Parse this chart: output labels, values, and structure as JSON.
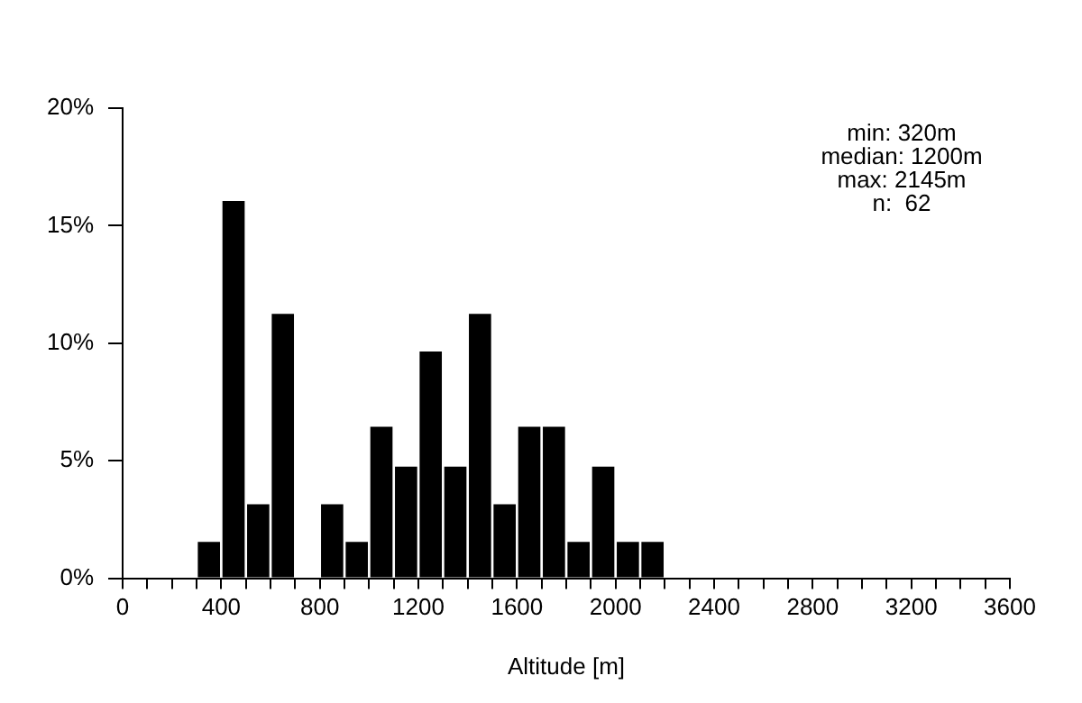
{
  "chart_data": {
    "type": "histogram",
    "xlabel": "Altitude [m]",
    "bins": [
      300,
      400,
      500,
      600,
      700,
      800,
      900,
      1000,
      1100,
      1200,
      1300,
      1400,
      1500,
      1600,
      1700,
      1800,
      1900,
      2000,
      2100,
      2200
    ],
    "values": [
      1.6,
      16.1,
      3.2,
      11.3,
      0,
      3.2,
      1.6,
      6.5,
      4.8,
      9.7,
      4.8,
      11.3,
      3.2,
      6.5,
      6.5,
      1.6,
      4.8,
      1.6,
      1.6
    ],
    "color": "#000000",
    "xlim": [
      0,
      3600
    ],
    "xticks": [
      0,
      {
        "value": 100,
        "label": null
      },
      {
        "value": 200,
        "label": null
      },
      {
        "value": 300,
        "label": null
      },
      400,
      {
        "value": 500,
        "label": null
      },
      {
        "value": 600,
        "label": null
      },
      {
        "value": 700,
        "label": null
      },
      800,
      {
        "value": 900,
        "label": null
      },
      {
        "value": 1000,
        "label": null
      },
      {
        "value": 1100,
        "label": null
      },
      1200,
      {
        "value": 1300,
        "label": null
      },
      {
        "value": 1400,
        "label": null
      },
      {
        "value": 1500,
        "label": null
      },
      1600,
      {
        "value": 1700,
        "label": null
      },
      {
        "value": 1800,
        "label": null
      },
      {
        "value": 1900,
        "label": null
      },
      2000,
      {
        "value": 2100,
        "label": null
      },
      {
        "value": 2200,
        "label": null
      },
      {
        "value": 2300,
        "label": null
      },
      2400,
      {
        "value": 2500,
        "label": null
      },
      {
        "value": 2600,
        "label": null
      },
      {
        "value": 2700,
        "label": null
      },
      2800,
      {
        "value": 2900,
        "label": null
      },
      {
        "value": 3000,
        "label": null
      },
      {
        "value": 3100,
        "label": null
      },
      3200,
      {
        "value": 3300,
        "label": null
      },
      {
        "value": 3400,
        "label": null
      },
      {
        "value": 3500,
        "label": null
      },
      3600
    ],
    "ylim": [
      0,
      20
    ],
    "yticks": [
      {
        "value": 0,
        "label": "0%"
      },
      {
        "value": 5,
        "label": "5%"
      },
      {
        "value": 10,
        "label": "10%"
      },
      {
        "value": 15,
        "label": "15%"
      },
      {
        "value": 20,
        "label": "20%"
      }
    ],
    "grid": false,
    "legend": false,
    "annotations": [
      "min: 320m",
      "median: 1200m",
      "max: 2145m",
      "n:  62"
    ]
  }
}
